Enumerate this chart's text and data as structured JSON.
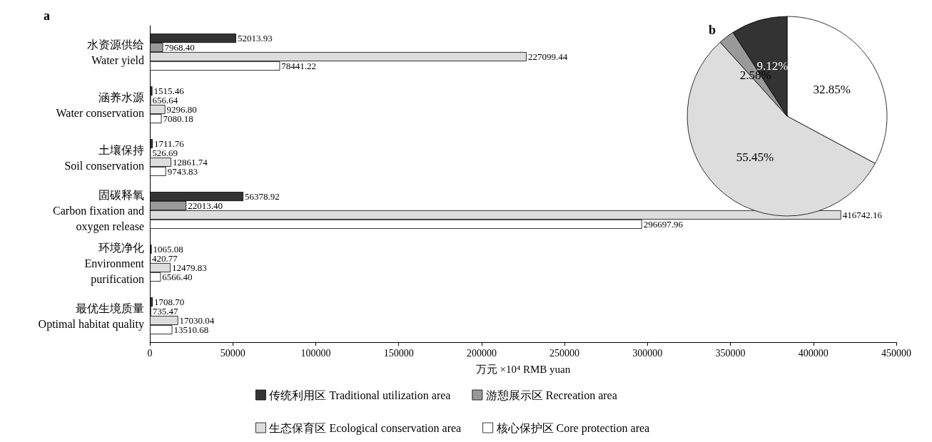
{
  "chart_data": [
    {
      "type": "bar",
      "title": "a",
      "orientation": "horizontal",
      "xlabel": "万元 ×10⁴ RMB yuan",
      "categories": [
        "水资源供给\nWater yield",
        "涵养水源\nWater conservation",
        "土壤保持\nSoil conservation",
        "固碳释氧\nCarbon fixation and\noxygen release",
        "环境净化\nEnvironment\npurification",
        "最优生境质量\nOptimal habitat quality"
      ],
      "series": [
        {
          "name": "传统利用区 Traditional utilization area",
          "color": "#333333",
          "values": [
            52013.93,
            1515.46,
            1711.76,
            56378.92,
            1065.08,
            1708.7
          ],
          "value_labels": [
            "52013.93",
            "1515.46",
            "1711.76",
            "56378.92",
            "1065.08",
            "1708.70"
          ]
        },
        {
          "name": "游憩展示区 Recreation area",
          "color": "#999999",
          "values": [
            7968.4,
            656.64,
            526.69,
            22013.4,
            420.77,
            735.47
          ],
          "value_labels": [
            "7968.40",
            "656.64",
            "526.69",
            "22013.40",
            "420.77",
            "735.47"
          ]
        },
        {
          "name": "生态保育区 Ecological conservation area",
          "color": "#dddddd",
          "values": [
            227099.44,
            9296.8,
            12861.74,
            416742.16,
            12479.83,
            17030.04
          ],
          "value_labels": [
            "227099.44",
            "9296.80",
            "12861.74",
            "416742.16",
            "12479.83",
            "17030.04"
          ]
        },
        {
          "name": "核心保护区 Core protection area",
          "color": "#ffffff",
          "values": [
            78441.22,
            7080.18,
            9743.83,
            296697.96,
            6566.4,
            13510.68
          ],
          "value_labels": [
            "78441.22",
            "7080.18",
            "9743.83",
            "296697.96",
            "6566.40",
            "13510.68"
          ]
        }
      ],
      "xlim": [
        0,
        450000
      ],
      "xticks": [
        0,
        50000,
        100000,
        150000,
        200000,
        250000,
        300000,
        350000,
        400000,
        450000
      ],
      "grid": false,
      "legend": "bottom"
    },
    {
      "type": "pie",
      "title": "b",
      "categories": [
        null,
        null,
        null,
        null
      ],
      "values": [
        32.85,
        55.45,
        2.58,
        9.12
      ],
      "colors": [
        "#ffffff",
        "#dddddd",
        "#999999",
        "#333333"
      ],
      "value_labels": [
        "32.85%",
        "55.45%",
        "2.58%",
        "9.12%"
      ]
    }
  ]
}
